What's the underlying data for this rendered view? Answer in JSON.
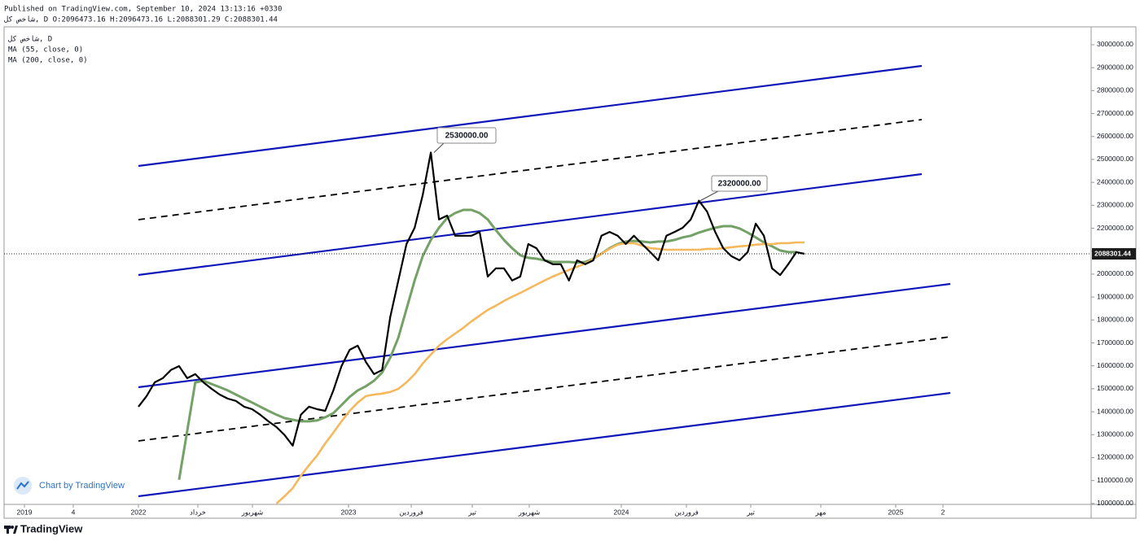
{
  "header": {
    "published": "Published on TradingView.com, September 10, 2024 13:13:16 +0330",
    "symbol_line": "شاخص کل, D O:2096473.16 H:2096473.16 L:2088301.29 C:2088301.44"
  },
  "chart_data": {
    "type": "line",
    "x_labels": [
      "2019",
      "4",
      "2022",
      "خرداد",
      "شهریور",
      "2023",
      "فروردین",
      "تیر",
      "شهریور",
      "2024",
      "فروردین",
      "تیر",
      "مهر",
      "2025",
      "2"
    ],
    "series": [
      {
        "name": "شاخص کل, D",
        "color": "#000000",
        "values": [
          1422000,
          1468000,
          1528000,
          1546000,
          1582000,
          1599000,
          1546000,
          1564000,
          1528000,
          1500000,
          1475000,
          1457000,
          1447000,
          1422000,
          1411000,
          1387000,
          1358000,
          1333000,
          1298000,
          1252000,
          1387000,
          1422000,
          1411000,
          1404000,
          1493000,
          1599000,
          1670000,
          1688000,
          1617000,
          1564000,
          1582000,
          1812000,
          1972000,
          2131000,
          2202000,
          2344000,
          2530000,
          2238000,
          2255000,
          2167000,
          2167000,
          2167000,
          2184000,
          1989000,
          2025000,
          2025000,
          1972000,
          1989000,
          2131000,
          2113000,
          2060000,
          2043000,
          2043000,
          1972000,
          2060000,
          2043000,
          2060000,
          2167000,
          2184000,
          2167000,
          2131000,
          2167000,
          2131000,
          2096000,
          2060000,
          2167000,
          2184000,
          2202000,
          2238000,
          2320000,
          2273000,
          2184000,
          2113000,
          2078000,
          2060000,
          2096000,
          2220000,
          2167000,
          2025000,
          1996000,
          2043000,
          2096000,
          2088301.44
        ]
      },
      {
        "name": "MA (55, close, 0)",
        "color": "#73a166",
        "values": [
          null,
          null,
          null,
          null,
          null,
          1103000,
          1316000,
          1528000,
          1535000,
          1521000,
          1507000,
          1493000,
          1475000,
          1457000,
          1440000,
          1422000,
          1404000,
          1387000,
          1372000,
          1365000,
          1358000,
          1358000,
          1362000,
          1376000,
          1394000,
          1429000,
          1465000,
          1493000,
          1511000,
          1535000,
          1571000,
          1635000,
          1723000,
          1848000,
          1972000,
          2078000,
          2149000,
          2202000,
          2245000,
          2266000,
          2280000,
          2280000,
          2266000,
          2238000,
          2192000,
          2149000,
          2113000,
          2082000,
          2071000,
          2067000,
          2060000,
          2053000,
          2053000,
          2053000,
          2050000,
          2053000,
          2067000,
          2089000,
          2113000,
          2131000,
          2142000,
          2145000,
          2142000,
          2138000,
          2142000,
          2142000,
          2149000,
          2160000,
          2167000,
          2181000,
          2192000,
          2202000,
          2209000,
          2209000,
          2199000,
          2181000,
          2160000,
          2138000,
          2121000,
          2103000,
          2096000,
          2096000,
          null
        ]
      },
      {
        "name": "MA (200, close, 0)",
        "color": "#f6b85c",
        "values": [
          null,
          null,
          null,
          null,
          null,
          null,
          null,
          null,
          null,
          null,
          null,
          null,
          null,
          null,
          null,
          null,
          null,
          1000000,
          1032000,
          1067000,
          1121000,
          1167000,
          1209000,
          1262000,
          1309000,
          1358000,
          1404000,
          1440000,
          1468000,
          1475000,
          1479000,
          1486000,
          1500000,
          1528000,
          1564000,
          1610000,
          1649000,
          1688000,
          1716000,
          1741000,
          1766000,
          1794000,
          1819000,
          1844000,
          1862000,
          1883000,
          1901000,
          1918000,
          1936000,
          1954000,
          1972000,
          1989000,
          2004000,
          2018000,
          2032000,
          2046000,
          2067000,
          2089000,
          2110000,
          2128000,
          2135000,
          2135000,
          2124000,
          2113000,
          2110000,
          2106000,
          2106000,
          2106000,
          2106000,
          2106000,
          2110000,
          2110000,
          2113000,
          2117000,
          2121000,
          2124000,
          2128000,
          2131000,
          2131000,
          2135000,
          2135000,
          2138000,
          2138000
        ]
      }
    ],
    "ylim": [
      996000,
      3078000
    ],
    "yticks": [
      {
        "value": 1000000,
        "label": "1000000.00"
      },
      {
        "value": 1100000,
        "label": "1100000.00"
      },
      {
        "value": 1200000,
        "label": "1200000.00"
      },
      {
        "value": 1300000,
        "label": "1300000.00"
      },
      {
        "value": 1400000,
        "label": "1400000.00"
      },
      {
        "value": 1500000,
        "label": "1500000.00"
      },
      {
        "value": 1600000,
        "label": "1600000.00"
      },
      {
        "value": 1700000,
        "label": "1700000.00"
      },
      {
        "value": 1800000,
        "label": "1800000.00"
      },
      {
        "value": 1900000,
        "label": "1900000.00"
      },
      {
        "value": 2000000,
        "label": "2000000.00"
      },
      {
        "value": 2100000,
        "label": "2100000.00"
      },
      {
        "value": 2200000,
        "label": "2200000.00"
      },
      {
        "value": 2300000,
        "label": "2300000.00"
      },
      {
        "value": 2400000,
        "label": "2400000.00"
      },
      {
        "value": 2500000,
        "label": "2500000.00"
      },
      {
        "value": 2600000,
        "label": "2600000.00"
      },
      {
        "value": 2700000,
        "label": "2700000.00"
      },
      {
        "value": 2800000,
        "label": "2800000.00"
      },
      {
        "value": 2900000,
        "label": "2900000.00"
      },
      {
        "value": 3000000,
        "label": "3000000.00"
      }
    ],
    "last_price": 2088301.44,
    "annotations": [
      {
        "value": 2530000,
        "label": "2530000.00"
      },
      {
        "value": 2320000,
        "label": "2320000.00"
      }
    ],
    "watermark": "Chart by TradingView"
  },
  "footer": {
    "brand": "TradingView"
  }
}
